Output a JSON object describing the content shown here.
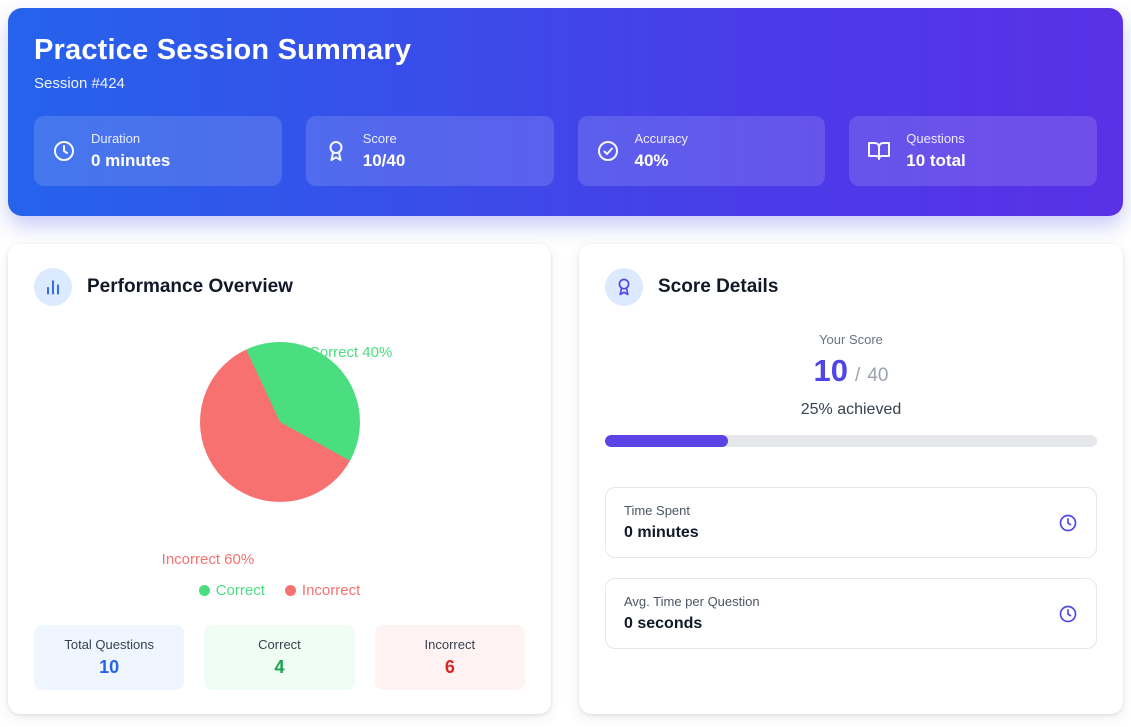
{
  "header": {
    "title": "Practice Session Summary",
    "subtitle": "Session #424",
    "stats": [
      {
        "icon": "clock-icon",
        "label": "Duration",
        "value": "0 minutes"
      },
      {
        "icon": "award-icon",
        "label": "Score",
        "value": "10/40"
      },
      {
        "icon": "check-circle-icon",
        "label": "Accuracy",
        "value": "40%"
      },
      {
        "icon": "book-open-icon",
        "label": "Questions",
        "value": "10 total"
      }
    ]
  },
  "performance": {
    "title": "Performance Overview",
    "chart_data": {
      "type": "pie",
      "categories": [
        "Correct",
        "Incorrect"
      ],
      "values": [
        40,
        60
      ],
      "colors": [
        "#4ade80",
        "#f87171"
      ],
      "slice_labels": [
        "Correct 40%",
        "Incorrect 60%"
      ],
      "legend_position": "bottom",
      "start_angle_deg": -25
    },
    "legend": [
      {
        "label": "Correct",
        "color": "#4ade80"
      },
      {
        "label": "Incorrect",
        "color": "#f87171"
      }
    ],
    "stats": [
      {
        "label": "Total Questions",
        "value": "10",
        "accent": "#2563eb",
        "bg": "#eff6ff"
      },
      {
        "label": "Correct",
        "value": "4",
        "accent": "#16a34a",
        "bg": "#f0fdf4"
      },
      {
        "label": "Incorrect",
        "value": "6",
        "accent": "#dc2626",
        "bg": "#fef2f2"
      }
    ]
  },
  "score_details": {
    "title": "Score Details",
    "your_score_label": "Your Score",
    "score_value": "10",
    "score_separator": "/",
    "score_max": "40",
    "achieved_text": "25% achieved",
    "progress_percent": 25,
    "progress_color": "#5b43e6",
    "rows": [
      {
        "label": "Time Spent",
        "value": "0 minutes",
        "icon": "clock-icon"
      },
      {
        "label": "Avg. Time per Question",
        "value": "0 seconds",
        "icon": "clock-icon"
      }
    ]
  }
}
